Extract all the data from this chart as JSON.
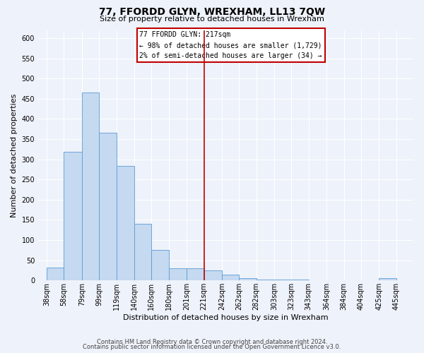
{
  "title": "77, FFORDD GLYN, WREXHAM, LL13 7QW",
  "subtitle": "Size of property relative to detached houses in Wrexham",
  "xlabel": "Distribution of detached houses by size in Wrexham",
  "ylabel": "Number of detached properties",
  "bar_left_edges": [
    38,
    58,
    79,
    99,
    119,
    140,
    160,
    180,
    201,
    221,
    242,
    262,
    282,
    303,
    323,
    343,
    364,
    384,
    404,
    425
  ],
  "bar_widths": [
    20,
    21,
    20,
    20,
    21,
    20,
    20,
    21,
    20,
    21,
    20,
    20,
    21,
    20,
    20,
    21,
    20,
    20,
    21,
    20
  ],
  "bar_heights": [
    32,
    318,
    465,
    365,
    284,
    141,
    76,
    31,
    30,
    25,
    14,
    5,
    3,
    2,
    2,
    1,
    0,
    0,
    0,
    5
  ],
  "bar_color": "#c5d9f0",
  "bar_edgecolor": "#5b9bd5",
  "property_line_x": 221,
  "property_line_color": "#c00000",
  "annotation_title": "77 FFORDD GLYN: 217sqm",
  "annotation_line1": "← 98% of detached houses are smaller (1,729)",
  "annotation_line2": "2% of semi-detached houses are larger (34) →",
  "annotation_box_edgecolor": "#c00000",
  "ylim": [
    0,
    620
  ],
  "yticks": [
    0,
    50,
    100,
    150,
    200,
    250,
    300,
    350,
    400,
    450,
    500,
    550,
    600
  ],
  "xlim": [
    28,
    465
  ],
  "xtick_labels": [
    "38sqm",
    "58sqm",
    "79sqm",
    "99sqm",
    "119sqm",
    "140sqm",
    "160sqm",
    "180sqm",
    "201sqm",
    "221sqm",
    "242sqm",
    "262sqm",
    "282sqm",
    "303sqm",
    "323sqm",
    "343sqm",
    "364sqm",
    "384sqm",
    "404sqm",
    "425sqm",
    "445sqm"
  ],
  "xtick_positions": [
    38,
    58,
    79,
    99,
    119,
    140,
    160,
    180,
    201,
    221,
    242,
    262,
    282,
    303,
    323,
    343,
    364,
    384,
    404,
    425,
    445
  ],
  "footer_line1": "Contains HM Land Registry data © Crown copyright and database right 2024.",
  "footer_line2": "Contains public sector information licensed under the Open Government Licence v3.0.",
  "background_color": "#eef2fa",
  "grid_color": "#ffffff",
  "title_fontsize": 10,
  "subtitle_fontsize": 8,
  "ylabel_fontsize": 8,
  "xlabel_fontsize": 8,
  "tick_fontsize": 7,
  "footer_fontsize": 6
}
